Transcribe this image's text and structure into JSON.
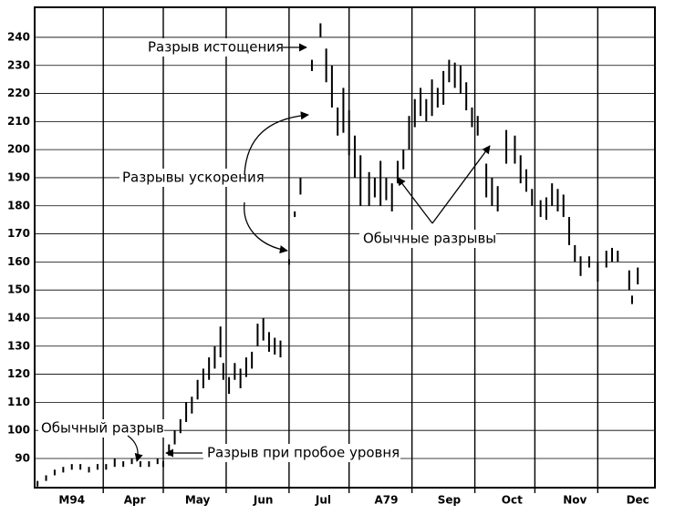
{
  "chart_data": {
    "type": "range",
    "annotations": [
      "Разрыв истощения",
      "Разрывы ускорения",
      "Обычные разрывы",
      "Обычный разрыв",
      "Разрыв при пробое уровня"
    ],
    "xlim": [
      -1,
      216
    ],
    "xticks": [
      {
        "value": 12,
        "label": "M94"
      },
      {
        "value": 34,
        "label": "Apr"
      },
      {
        "value": 56,
        "label": "May"
      },
      {
        "value": 79,
        "label": "Jun"
      },
      {
        "value": 100,
        "label": "Jul"
      },
      {
        "value": 122,
        "label": "A79"
      },
      {
        "value": 144,
        "label": "Sep"
      },
      {
        "value": 166,
        "label": "Oct"
      },
      {
        "value": 188,
        "label": "Nov"
      },
      {
        "value": 210,
        "label": "Dec"
      }
    ],
    "xgrid": [
      23,
      44,
      66,
      88,
      109,
      131,
      153,
      174,
      196
    ],
    "ylim": [
      79.6,
      250.7
    ],
    "yticks": [
      90,
      100,
      110,
      120,
      130,
      140,
      150,
      160,
      170,
      180,
      190,
      200,
      210,
      220,
      230,
      240
    ],
    "grid": true,
    "color": "#000000",
    "x": [
      0,
      3,
      6,
      9,
      12,
      15,
      18,
      21,
      24,
      27,
      30,
      33,
      36,
      39,
      42,
      44,
      46,
      48,
      50,
      52,
      54,
      56,
      58,
      60,
      62,
      64,
      65,
      67,
      69,
      71,
      73,
      75,
      77,
      79,
      81,
      83,
      85,
      88,
      90,
      92,
      96,
      99,
      101,
      103,
      105,
      107,
      109,
      111,
      113,
      116,
      118,
      120,
      122,
      124,
      126,
      128,
      130,
      132,
      134,
      136,
      138,
      140,
      142,
      144,
      146,
      148,
      150,
      152,
      154,
      157,
      159,
      161,
      164,
      167,
      169,
      171,
      173,
      176,
      178,
      180,
      182,
      184,
      186,
      188,
      190,
      193,
      196,
      199,
      201,
      203,
      207,
      208,
      210
    ],
    "high": [
      82,
      84,
      86,
      87,
      88,
      88,
      87,
      88,
      88,
      90,
      89,
      90,
      89,
      89,
      90,
      89,
      95,
      100,
      104,
      110,
      112,
      118,
      122,
      126,
      130,
      137,
      124,
      119,
      124,
      122,
      126,
      128,
      138,
      140,
      135,
      133,
      132,
      161,
      178,
      190,
      232,
      245,
      236,
      230,
      215,
      222,
      214,
      205,
      198,
      192,
      190,
      196,
      190,
      188,
      196,
      200,
      212,
      218,
      222,
      218,
      225,
      222,
      228,
      232,
      231,
      230,
      224,
      215,
      212,
      195,
      190,
      187,
      207,
      205,
      198,
      193,
      186,
      182,
      183,
      188,
      186,
      184,
      176,
      166,
      162,
      162,
      160,
      164,
      165,
      164,
      157,
      148,
      158
    ],
    "low": [
      80,
      82,
      84,
      85,
      86,
      86,
      85,
      86,
      86,
      87,
      87,
      88,
      87,
      87,
      88,
      87,
      91,
      95,
      99,
      103,
      106,
      111,
      115,
      118,
      122,
      126,
      118,
      113,
      118,
      115,
      119,
      122,
      130,
      132,
      128,
      127,
      126,
      159,
      176,
      184,
      228,
      240,
      224,
      215,
      205,
      206,
      198,
      190,
      180,
      180,
      183,
      180,
      182,
      178,
      188,
      193,
      200,
      208,
      212,
      210,
      212,
      215,
      216,
      224,
      222,
      220,
      214,
      208,
      205,
      183,
      180,
      178,
      195,
      195,
      188,
      185,
      180,
      176,
      175,
      180,
      178,
      176,
      166,
      160,
      155,
      158,
      153,
      158,
      160,
      160,
      150,
      145,
      152
    ]
  }
}
